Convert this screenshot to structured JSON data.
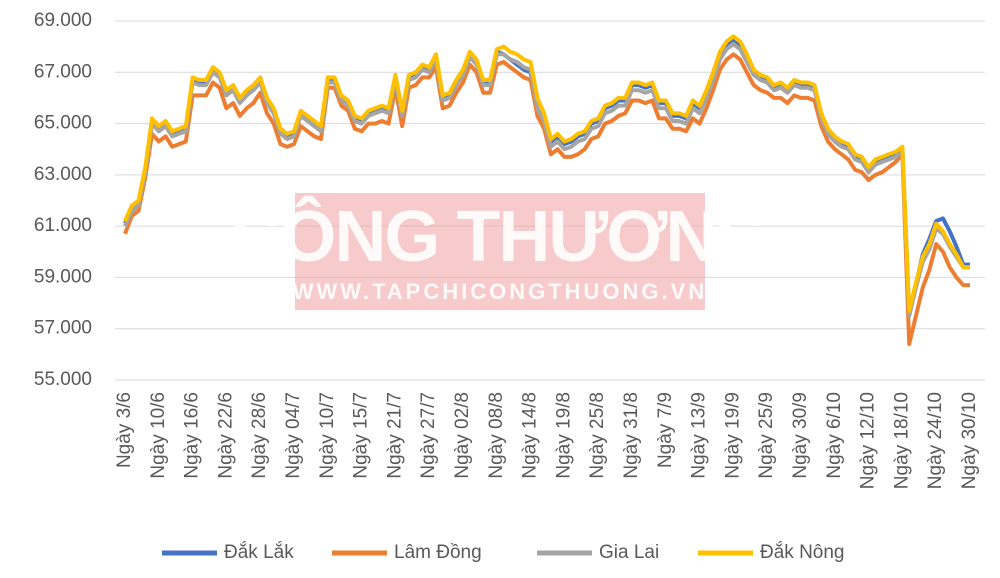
{
  "chart_data": {
    "type": "line",
    "categories": [
      "Ngày 3/6",
      null,
      null,
      null,
      null,
      "Ngày 10/6",
      null,
      null,
      null,
      null,
      "Ngày 16/6",
      null,
      null,
      null,
      null,
      "Ngày 22/6",
      null,
      null,
      null,
      null,
      "Ngày 28/6",
      null,
      null,
      null,
      null,
      "Ngày 04/7",
      null,
      null,
      null,
      null,
      "Ngày 10/7",
      null,
      null,
      null,
      null,
      "Ngày 15/7",
      null,
      null,
      null,
      null,
      "Ngày 21/7",
      null,
      null,
      null,
      null,
      "Ngày 27/7",
      null,
      null,
      null,
      null,
      "Ngày 02/8",
      null,
      null,
      null,
      null,
      "Ngày 08/8",
      null,
      null,
      null,
      null,
      "Ngày 14/8",
      null,
      null,
      null,
      null,
      "Ngày 19/8",
      null,
      null,
      null,
      null,
      "Ngày 25/8",
      null,
      null,
      null,
      null,
      "Ngày 31/8",
      null,
      null,
      null,
      null,
      "Ngày 7/9",
      null,
      null,
      null,
      null,
      "Ngày 13/9",
      null,
      null,
      null,
      null,
      "Ngày 19/9",
      null,
      null,
      null,
      null,
      "Ngày 25/9",
      null,
      null,
      null,
      null,
      "Ngày 30/9",
      null,
      null,
      null,
      null,
      "Ngày 6/10",
      null,
      null,
      null,
      null,
      "Ngày 12/10",
      null,
      null,
      null,
      null,
      "Ngày 18/10",
      null,
      null,
      null,
      null,
      "Ngày 24/10",
      null,
      null,
      null,
      null,
      "Ngày 30/10"
    ],
    "series": [
      {
        "name": "Đắk Lắk",
        "color": "#4472c4",
        "values": [
          61100,
          61700,
          61900,
          63200,
          65100,
          64800,
          65000,
          64600,
          64700,
          64800,
          66700,
          66600,
          66600,
          67100,
          66900,
          66200,
          66400,
          65900,
          66200,
          66400,
          66700,
          65900,
          65500,
          64700,
          64500,
          64600,
          65400,
          65200,
          65000,
          64800,
          66700,
          66700,
          66000,
          65800,
          65200,
          65100,
          65400,
          65500,
          65600,
          65500,
          66800,
          65400,
          66800,
          66900,
          67200,
          67100,
          67600,
          66000,
          66100,
          66600,
          67000,
          67700,
          67400,
          66600,
          66600,
          67800,
          67700,
          67500,
          67300,
          67100,
          67000,
          65500,
          65000,
          64300,
          64500,
          64200,
          64300,
          64500,
          64600,
          65000,
          65100,
          65600,
          65700,
          65900,
          65900,
          66500,
          66500,
          66400,
          66500,
          65800,
          65800,
          65300,
          65300,
          65200,
          65800,
          65600,
          66200,
          66900,
          67700,
          68100,
          68300,
          68000,
          67500,
          67000,
          66800,
          66700,
          66400,
          66500,
          66300,
          66600,
          66500,
          66500,
          66400,
          65300,
          64700,
          64400,
          64200,
          64100,
          63700,
          63600,
          63200,
          63500,
          63600,
          63700,
          63800,
          64000,
          57600,
          58700,
          59900,
          60500,
          61200,
          61300,
          60800,
          60200,
          59500,
          59500
        ]
      },
      {
        "name": "Lâm Đồng",
        "color": "#ed7d31",
        "values": [
          60700,
          61400,
          61600,
          62900,
          64600,
          64300,
          64500,
          64100,
          64200,
          64300,
          66100,
          66100,
          66100,
          66600,
          66400,
          65600,
          65800,
          65300,
          65600,
          65800,
          66200,
          65400,
          65000,
          64200,
          64100,
          64200,
          64900,
          64700,
          64500,
          64400,
          66400,
          66400,
          65700,
          65500,
          64800,
          64700,
          65000,
          65000,
          65100,
          65000,
          66400,
          64900,
          66400,
          66500,
          66800,
          66800,
          67200,
          65600,
          65700,
          66200,
          66600,
          67300,
          67000,
          66200,
          66200,
          67300,
          67400,
          67200,
          67000,
          66800,
          66700,
          65300,
          64800,
          63800,
          64000,
          63700,
          63700,
          63800,
          64000,
          64400,
          64500,
          65000,
          65100,
          65300,
          65400,
          65900,
          65900,
          65800,
          65900,
          65200,
          65200,
          64800,
          64800,
          64700,
          65200,
          65000,
          65600,
          66300,
          67100,
          67500,
          67700,
          67500,
          67000,
          66500,
          66300,
          66200,
          66000,
          66000,
          65800,
          66100,
          66000,
          66000,
          65900,
          64900,
          64300,
          64000,
          63800,
          63600,
          63200,
          63100,
          62800,
          63000,
          63100,
          63300,
          63500,
          63800,
          56400,
          57500,
          58600,
          59300,
          60300,
          60000,
          59400,
          59000,
          58700,
          58700
        ]
      },
      {
        "name": "Gia Lai",
        "color": "#a5a5a5",
        "values": [
          61000,
          61600,
          61800,
          63100,
          65000,
          64700,
          64900,
          64500,
          64600,
          64700,
          66600,
          66500,
          66500,
          67000,
          66800,
          66100,
          66300,
          65800,
          66100,
          66300,
          66600,
          65800,
          65400,
          64600,
          64400,
          64500,
          65300,
          65100,
          64900,
          64700,
          66600,
          66600,
          65900,
          65700,
          65100,
          65000,
          65300,
          65400,
          65500,
          65400,
          66700,
          65300,
          66700,
          66800,
          67100,
          67000,
          67500,
          65900,
          66000,
          66500,
          66900,
          67600,
          67300,
          66500,
          66500,
          67700,
          67700,
          67500,
          67400,
          67200,
          67100,
          65600,
          65100,
          64100,
          64300,
          64000,
          64100,
          64300,
          64400,
          64800,
          64900,
          65400,
          65500,
          65700,
          65700,
          66300,
          66300,
          66200,
          66300,
          65600,
          65600,
          65100,
          65100,
          65000,
          65600,
          65400,
          66000,
          66700,
          67500,
          67900,
          68100,
          67900,
          67400,
          66900,
          66700,
          66600,
          66300,
          66400,
          66200,
          66500,
          66400,
          66400,
          66300,
          65200,
          64600,
          64300,
          64100,
          64000,
          63600,
          63500,
          63100,
          63400,
          63500,
          63600,
          63700,
          63900,
          57500,
          58600,
          59600,
          60100,
          60900,
          60700,
          60200,
          59800,
          59400,
          59400
        ]
      },
      {
        "name": "Đắk Nông",
        "color": "#ffc000",
        "values": [
          61200,
          61800,
          62000,
          63300,
          65200,
          64900,
          65100,
          64700,
          64800,
          64900,
          66800,
          66700,
          66700,
          67200,
          67000,
          66300,
          66500,
          66000,
          66300,
          66500,
          66800,
          66000,
          65600,
          64800,
          64600,
          64700,
          65500,
          65300,
          65100,
          64900,
          66800,
          66800,
          66100,
          65900,
          65300,
          65200,
          65500,
          65600,
          65700,
          65600,
          66900,
          65500,
          66900,
          67000,
          67300,
          67200,
          67700,
          66100,
          66200,
          66700,
          67100,
          67800,
          67500,
          66700,
          66700,
          67900,
          68000,
          67800,
          67700,
          67500,
          67400,
          66000,
          65400,
          64400,
          64600,
          64300,
          64400,
          64600,
          64700,
          65100,
          65200,
          65700,
          65800,
          66000,
          66000,
          66600,
          66600,
          66500,
          66600,
          65900,
          65900,
          65400,
          65400,
          65300,
          65900,
          65700,
          66300,
          67000,
          67800,
          68200,
          68400,
          68200,
          67700,
          67100,
          66900,
          66800,
          66500,
          66600,
          66400,
          66700,
          66600,
          66600,
          66500,
          65400,
          64800,
          64500,
          64300,
          64200,
          63800,
          63700,
          63300,
          63600,
          63700,
          63800,
          63900,
          64100,
          57700,
          58800,
          59800,
          60300,
          61100,
          60800,
          60300,
          59900,
          59400,
          59400
        ]
      }
    ],
    "ylim": [
      55000,
      69000
    ],
    "yticks": [
      {
        "value": 55000,
        "label": "55.000"
      },
      {
        "value": 57000,
        "label": "57.000"
      },
      {
        "value": 59000,
        "label": "59.000"
      },
      {
        "value": 61000,
        "label": "61.000"
      },
      {
        "value": 63000,
        "label": "63.000"
      },
      {
        "value": 65000,
        "label": "65.000"
      },
      {
        "value": 67000,
        "label": "67.000"
      },
      {
        "value": 69000,
        "label": "69.000"
      }
    ],
    "grid": true,
    "legend": "bottom"
  },
  "watermark": {
    "title": "CÔNG THƯƠNG",
    "url": "WWW.TAPCHICONGTHUONG.VN"
  }
}
